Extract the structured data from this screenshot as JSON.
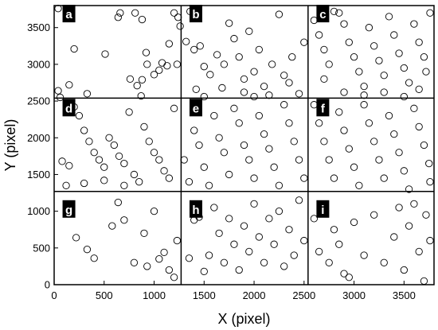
{
  "chart_data": {
    "type": "scatter",
    "xlabel": "X (pixel)",
    "ylabel": "Y (pixel)",
    "xlim": [
      0,
      3800
    ],
    "ylim": [
      0,
      3800
    ],
    "x_ticks": [
      0,
      500,
      1000,
      1500,
      2000,
      2500,
      3000,
      3500
    ],
    "y_ticks": [
      0,
      500,
      1000,
      1500,
      2000,
      2500,
      3000,
      3500
    ],
    "grid_lines": {
      "x": [
        1270,
        2540
      ],
      "y": [
        1270,
        2540
      ]
    },
    "panels": [
      {
        "label": "a",
        "x": 100,
        "y": 3680
      },
      {
        "label": "b",
        "x": 1370,
        "y": 3680
      },
      {
        "label": "c",
        "x": 2640,
        "y": 3680
      },
      {
        "label": "d",
        "x": 100,
        "y": 2400
      },
      {
        "label": "e",
        "x": 1370,
        "y": 2400
      },
      {
        "label": "f",
        "x": 2640,
        "y": 2400
      },
      {
        "label": "g",
        "x": 100,
        "y": 1020
      },
      {
        "label": "h",
        "x": 1370,
        "y": 1020
      },
      {
        "label": "i",
        "x": 2640,
        "y": 1020
      }
    ],
    "marker": "open-circle",
    "points": [
      [
        40,
        3760
      ],
      [
        40,
        2640
      ],
      [
        60,
        2550
      ],
      [
        150,
        2720
      ],
      [
        200,
        3210
      ],
      [
        330,
        2600
      ],
      [
        510,
        3140
      ],
      [
        640,
        3640
      ],
      [
        660,
        3700
      ],
      [
        760,
        2800
      ],
      [
        810,
        3700
      ],
      [
        880,
        3610
      ],
      [
        830,
        2710
      ],
      [
        870,
        2570
      ],
      [
        880,
        2790
      ],
      [
        920,
        3160
      ],
      [
        930,
        3000
      ],
      [
        1000,
        2860
      ],
      [
        1050,
        2920
      ],
      [
        1080,
        3020
      ],
      [
        1130,
        2980
      ],
      [
        1150,
        3280
      ],
      [
        1200,
        3700
      ],
      [
        1240,
        3640
      ],
      [
        1230,
        3000
      ],
      [
        1260,
        3520
      ],
      [
        1320,
        3310
      ],
      [
        1360,
        3720
      ],
      [
        1400,
        3200
      ],
      [
        1460,
        3250
      ],
      [
        1500,
        2970
      ],
      [
        1560,
        2860
      ],
      [
        1630,
        3130
      ],
      [
        1700,
        3000
      ],
      [
        1750,
        3560
      ],
      [
        1800,
        3350
      ],
      [
        1850,
        3100
      ],
      [
        1900,
        2800
      ],
      [
        1950,
        3450
      ],
      [
        2000,
        2900
      ],
      [
        2050,
        3200
      ],
      [
        2100,
        2700
      ],
      [
        2180,
        3000
      ],
      [
        2250,
        3680
      ],
      [
        2300,
        2850
      ],
      [
        2380,
        3100
      ],
      [
        2450,
        2600
      ],
      [
        2500,
        3300
      ],
      [
        1420,
        2660
      ],
      [
        1680,
        2680
      ],
      [
        1900,
        2620
      ],
      [
        2150,
        2580
      ],
      [
        2350,
        2750
      ],
      [
        1500,
        2560
      ],
      [
        2000,
        2560
      ],
      [
        2600,
        3600
      ],
      [
        2650,
        3400
      ],
      [
        2700,
        3200
      ],
      [
        2750,
        3000
      ],
      [
        2800,
        3720
      ],
      [
        2850,
        3700
      ],
      [
        2900,
        3550
      ],
      [
        2950,
        3300
      ],
      [
        3000,
        3100
      ],
      [
        3050,
        2900
      ],
      [
        3100,
        2700
      ],
      [
        3150,
        3500
      ],
      [
        3200,
        3250
      ],
      [
        3250,
        3050
      ],
      [
        3300,
        2850
      ],
      [
        3350,
        3650
      ],
      [
        3400,
        3400
      ],
      [
        3450,
        3150
      ],
      [
        3500,
        2950
      ],
      [
        3550,
        2750
      ],
      [
        3600,
        3550
      ],
      [
        3650,
        3300
      ],
      [
        3700,
        3100
      ],
      [
        3720,
        2900
      ],
      [
        3760,
        3700
      ],
      [
        2700,
        2800
      ],
      [
        2900,
        2620
      ],
      [
        3100,
        2580
      ],
      [
        3300,
        2620
      ],
      [
        3500,
        2560
      ],
      [
        3650,
        2660
      ],
      [
        80,
        1680
      ],
      [
        150,
        1620
      ],
      [
        200,
        2420
      ],
      [
        250,
        2300
      ],
      [
        300,
        2100
      ],
      [
        350,
        1950
      ],
      [
        400,
        1800
      ],
      [
        450,
        1700
      ],
      [
        500,
        1600
      ],
      [
        550,
        2000
      ],
      [
        600,
        1900
      ],
      [
        650,
        1750
      ],
      [
        700,
        1650
      ],
      [
        750,
        2350
      ],
      [
        800,
        1500
      ],
      [
        850,
        1400
      ],
      [
        900,
        2150
      ],
      [
        950,
        1950
      ],
      [
        1000,
        1800
      ],
      [
        1050,
        1700
      ],
      [
        1100,
        1550
      ],
      [
        1150,
        1450
      ],
      [
        1200,
        2400
      ],
      [
        120,
        1350
      ],
      [
        300,
        1380
      ],
      [
        500,
        1420
      ],
      [
        700,
        1350
      ],
      [
        1300,
        1700
      ],
      [
        1350,
        1400
      ],
      [
        1400,
        2100
      ],
      [
        1450,
        1900
      ],
      [
        1500,
        1600
      ],
      [
        1550,
        1350
      ],
      [
        1600,
        2300
      ],
      [
        1650,
        2000
      ],
      [
        1700,
        1800
      ],
      [
        1750,
        1500
      ],
      [
        1800,
        2400
      ],
      [
        1850,
        2200
      ],
      [
        1900,
        1900
      ],
      [
        1950,
        1700
      ],
      [
        2000,
        1450
      ],
      [
        2050,
        2300
      ],
      [
        2100,
        2050
      ],
      [
        2150,
        1850
      ],
      [
        2200,
        1600
      ],
      [
        2250,
        1350
      ],
      [
        2300,
        2450
      ],
      [
        2350,
        2200
      ],
      [
        2400,
        1950
      ],
      [
        2450,
        1700
      ],
      [
        2500,
        1450
      ],
      [
        2600,
        2450
      ],
      [
        2650,
        2200
      ],
      [
        2700,
        1950
      ],
      [
        2750,
        1700
      ],
      [
        2800,
        1450
      ],
      [
        2850,
        2350
      ],
      [
        2900,
        2100
      ],
      [
        2950,
        1850
      ],
      [
        3000,
        1600
      ],
      [
        3050,
        1350
      ],
      [
        3100,
        2450
      ],
      [
        3150,
        2200
      ],
      [
        3200,
        1950
      ],
      [
        3250,
        1700
      ],
      [
        3300,
        1450
      ],
      [
        3350,
        2300
      ],
      [
        3400,
        2050
      ],
      [
        3450,
        1800
      ],
      [
        3500,
        1550
      ],
      [
        3550,
        1300
      ],
      [
        3600,
        2400
      ],
      [
        3650,
        2150
      ],
      [
        3700,
        1900
      ],
      [
        3750,
        1650
      ],
      [
        3760,
        1400
      ],
      [
        170,
        1050
      ],
      [
        220,
        640
      ],
      [
        330,
        480
      ],
      [
        400,
        360
      ],
      [
        580,
        800
      ],
      [
        640,
        1120
      ],
      [
        700,
        880
      ],
      [
        900,
        700
      ],
      [
        930,
        250
      ],
      [
        1000,
        1000
      ],
      [
        1050,
        350
      ],
      [
        1100,
        440
      ],
      [
        1150,
        200
      ],
      [
        1200,
        100
      ],
      [
        1230,
        600
      ],
      [
        800,
        300
      ],
      [
        1350,
        360
      ],
      [
        1400,
        880
      ],
      [
        1450,
        920
      ],
      [
        1500,
        180
      ],
      [
        1550,
        400
      ],
      [
        1600,
        1050
      ],
      [
        1650,
        700
      ],
      [
        1700,
        300
      ],
      [
        1750,
        900
      ],
      [
        1800,
        550
      ],
      [
        1850,
        200
      ],
      [
        1900,
        800
      ],
      [
        1950,
        450
      ],
      [
        2000,
        1100
      ],
      [
        2050,
        650
      ],
      [
        2100,
        300
      ],
      [
        2150,
        900
      ],
      [
        2200,
        550
      ],
      [
        2250,
        1000
      ],
      [
        2300,
        250
      ],
      [
        2350,
        750
      ],
      [
        2400,
        400
      ],
      [
        2450,
        1150
      ],
      [
        2500,
        600
      ],
      [
        2600,
        900
      ],
      [
        2650,
        450
      ],
      [
        2700,
        1000
      ],
      [
        2750,
        300
      ],
      [
        2800,
        750
      ],
      [
        2850,
        550
      ],
      [
        2900,
        150
      ],
      [
        2950,
        100
      ],
      [
        3000,
        850
      ],
      [
        3100,
        400
      ],
      [
        3200,
        950
      ],
      [
        3300,
        300
      ],
      [
        3400,
        650
      ],
      [
        3450,
        1050
      ],
      [
        3500,
        200
      ],
      [
        3550,
        800
      ],
      [
        3600,
        1100
      ],
      [
        3650,
        450
      ],
      [
        3700,
        50
      ],
      [
        3720,
        950
      ],
      [
        3760,
        600
      ]
    ]
  }
}
